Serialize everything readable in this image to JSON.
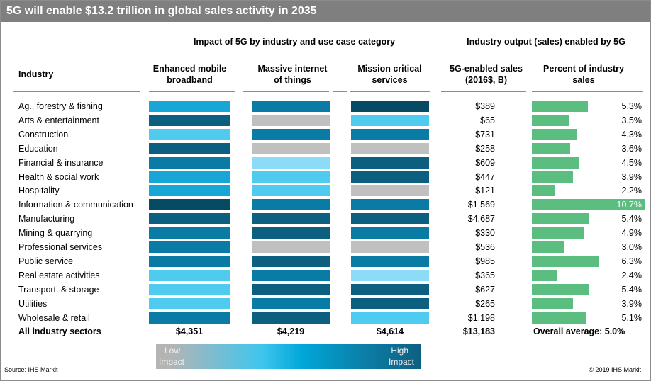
{
  "title": "5G will enable $13.2 trillion in global sales activity in 2035",
  "group_headers": {
    "impact": "Impact of 5G by industry and use case category",
    "output": "Industry output (sales) enabled by 5G"
  },
  "columns": {
    "industry": "Industry",
    "embb": [
      "Enhanced mobile",
      "broadband"
    ],
    "miot": [
      "Massive internet",
      "of things"
    ],
    "mcs": [
      "Mission critical",
      "services"
    ],
    "sales": [
      "5G-enabled sales",
      "(2016$, B)"
    ],
    "percent": [
      "Percent of industry",
      "sales"
    ]
  },
  "colors": {
    "L1": "#c0c0c0",
    "L2": "#8ddcf7",
    "L3": "#4fcbf0",
    "L4": "#17a6d6",
    "L5": "#0a7ba4",
    "L6": "#0d5f7f",
    "L7": "#074a63",
    "pct_bar": "#5bbd7f",
    "title_bg": "#7f7f7f"
  },
  "chart_data": {
    "type": "table",
    "title": "5G will enable $13.2 trillion in global sales activity in 2035",
    "rows": [
      {
        "industry": "Ag., forestry & fishing",
        "embb": "L4",
        "miot": "L5",
        "mcs": "L7",
        "sales": "$389",
        "percent_value": 5.3,
        "percent": "5.3%"
      },
      {
        "industry": "Arts & entertainment",
        "embb": "L6",
        "miot": "L1",
        "mcs": "L3",
        "sales": "$65",
        "percent_value": 3.5,
        "percent": "3.5%"
      },
      {
        "industry": "Construction",
        "embb": "L3",
        "miot": "L5",
        "mcs": "L5",
        "sales": "$731",
        "percent_value": 4.3,
        "percent": "4.3%"
      },
      {
        "industry": "Education",
        "embb": "L6",
        "miot": "L1",
        "mcs": "L1",
        "sales": "$258",
        "percent_value": 3.6,
        "percent": "3.6%"
      },
      {
        "industry": "Financial & insurance",
        "embb": "L5",
        "miot": "L2",
        "mcs": "L6",
        "sales": "$609",
        "percent_value": 4.5,
        "percent": "4.5%"
      },
      {
        "industry": "Health & social work",
        "embb": "L4",
        "miot": "L3",
        "mcs": "L6",
        "sales": "$447",
        "percent_value": 3.9,
        "percent": "3.9%"
      },
      {
        "industry": "Hospitality",
        "embb": "L4",
        "miot": "L3",
        "mcs": "L1",
        "sales": "$121",
        "percent_value": 2.2,
        "percent": "2.2%"
      },
      {
        "industry": "Information & communication",
        "embb": "L7",
        "miot": "L5",
        "mcs": "L5",
        "sales": "$1,569",
        "percent_value": 10.7,
        "percent": "10.7%"
      },
      {
        "industry": "Manufacturing",
        "embb": "L6",
        "miot": "L6",
        "mcs": "L6",
        "sales": "$4,687",
        "percent_value": 5.4,
        "percent": "5.4%"
      },
      {
        "industry": "Mining & quarrying",
        "embb": "L5",
        "miot": "L6",
        "mcs": "L5",
        "sales": "$330",
        "percent_value": 4.9,
        "percent": "4.9%"
      },
      {
        "industry": "Professional services",
        "embb": "L5",
        "miot": "L1",
        "mcs": "L1",
        "sales": "$536",
        "percent_value": 3.0,
        "percent": "3.0%"
      },
      {
        "industry": "Public service",
        "embb": "L5",
        "miot": "L6",
        "mcs": "L5",
        "sales": "$985",
        "percent_value": 6.3,
        "percent": "6.3%"
      },
      {
        "industry": "Real estate activities",
        "embb": "L3",
        "miot": "L5",
        "mcs": "L2",
        "sales": "$365",
        "percent_value": 2.4,
        "percent": "2.4%"
      },
      {
        "industry": "Transport. & storage",
        "embb": "L3",
        "miot": "L6",
        "mcs": "L6",
        "sales": "$627",
        "percent_value": 5.4,
        "percent": "5.4%"
      },
      {
        "industry": "Utilities",
        "embb": "L3",
        "miot": "L5",
        "mcs": "L6",
        "sales": "$265",
        "percent_value": 3.9,
        "percent": "3.9%"
      },
      {
        "industry": "Wholesale & retail",
        "embb": "L5",
        "miot": "L6",
        "mcs": "L3",
        "sales": "$1,198",
        "percent_value": 5.1,
        "percent": "5.1%"
      }
    ],
    "percent_max": 10.7
  },
  "totals": {
    "label": "All industry sectors",
    "embb": "$4,351",
    "miot": "$4,219",
    "mcs": "$4,614",
    "sales": "$13,183",
    "percent": "Overall average: 5.0%"
  },
  "legend": {
    "low": [
      "Low",
      "Impact"
    ],
    "high": [
      "High",
      "Impact"
    ]
  },
  "footer": {
    "source": "Source: IHS Markit",
    "copyright": "© 2019 IHS Markit"
  }
}
